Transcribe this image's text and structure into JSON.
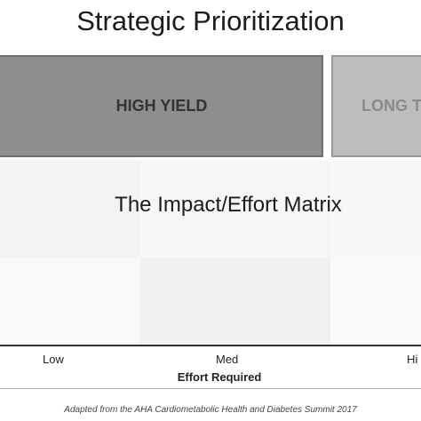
{
  "title": "Strategic Prioritization",
  "quadrants": {
    "high_yield": "HIGH YIELD",
    "long_term_partial": "LONG T"
  },
  "caption": "The Impact/Effort Matrix",
  "x_axis": {
    "ticks": [
      "Low",
      "Med",
      "Hi"
    ],
    "title": "Effort Required"
  },
  "footnote": "Adapted from the AHA Cardiometabolic Health and Diabetes Summit 2017",
  "colors": {
    "high_yield_fill": "#8e8e8e",
    "long_term_fill": "#bdbdbd",
    "axis_line": "#333333"
  }
}
